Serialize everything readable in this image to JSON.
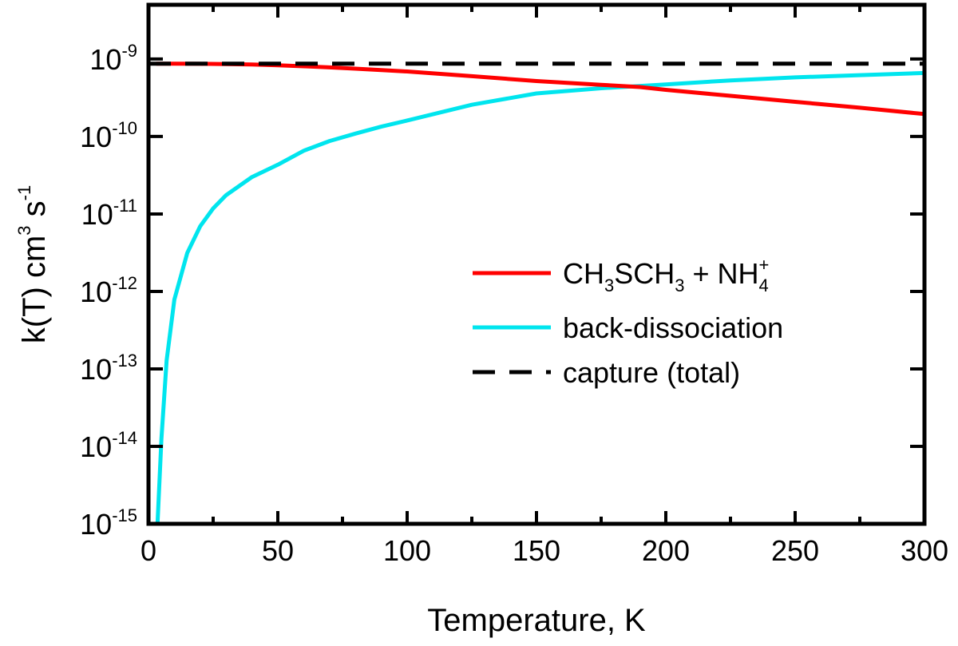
{
  "chart_data": {
    "type": "line",
    "title": "",
    "xlabel": "Temperature, K",
    "ylabel": {
      "base": "k(T) cm",
      "exp_cm": "3",
      "mid": " s",
      "exp_s": "-1"
    },
    "xlim": [
      0,
      300
    ],
    "ylim_log10": [
      -15,
      -8.3
    ],
    "x_ticks": [
      0,
      50,
      100,
      150,
      200,
      250,
      300
    ],
    "y_ticks": [
      {
        "base": "10",
        "exp": "-9",
        "log": -9
      },
      {
        "base": "10",
        "exp": "-10",
        "log": -10
      },
      {
        "base": "10",
        "exp": "-11",
        "log": -11
      },
      {
        "base": "10",
        "exp": "-12",
        "log": -12
      },
      {
        "base": "10",
        "exp": "-13",
        "log": -13
      },
      {
        "base": "10",
        "exp": "-14",
        "log": -14
      },
      {
        "base": "10",
        "exp": "-15",
        "log": -15
      }
    ],
    "grid": false,
    "legend_position": "center-right",
    "series": [
      {
        "name": "CH3SCH3 + NH4+",
        "label_parts": {
          "a": "CH",
          "s1": "3",
          "b": "SCH",
          "s2": "3",
          "c": " + NH",
          "s3": "4",
          "sup": "+"
        },
        "color": "#ff0000",
        "style": "solid",
        "x": [
          3,
          10,
          20,
          30,
          40,
          50,
          60,
          70,
          80,
          90,
          100,
          125,
          150,
          175,
          190,
          200,
          225,
          250,
          275,
          300
        ],
        "y": [
          8.7e-10,
          8.7e-10,
          8.68e-10,
          8.62e-10,
          8.5e-10,
          8.3e-10,
          8.05e-10,
          7.8e-10,
          7.5e-10,
          7.2e-10,
          6.9e-10,
          6e-10,
          5.2e-10,
          4.65e-10,
          4.35e-10,
          4e-10,
          3.35e-10,
          2.8e-10,
          2.35e-10,
          1.95e-10
        ]
      },
      {
        "name": "back-dissociation",
        "color": "#00e5ee",
        "style": "solid",
        "x": [
          3.5,
          5,
          7,
          10,
          15,
          20,
          25,
          30,
          40,
          50,
          60,
          70,
          80,
          90,
          100,
          125,
          150,
          175,
          200,
          225,
          250,
          275,
          300
        ],
        "y": [
          1e-15,
          1.25e-14,
          1.28e-13,
          7.84e-13,
          3.14e-12,
          6.94e-12,
          1.18e-11,
          1.75e-11,
          3e-11,
          4.32e-11,
          6.54e-11,
          8.73e-11,
          1.09e-10,
          1.34e-10,
          1.61e-10,
          2.57e-10,
          3.6e-10,
          4.2e-10,
          4.7e-10,
          5.3e-10,
          5.8e-10,
          6.2e-10,
          6.6e-10
        ]
      },
      {
        "name": "capture (total)",
        "color": "#000000",
        "style": "dashed",
        "x": [
          0,
          300
        ],
        "y": [
          8.7e-10,
          8.7e-10
        ]
      }
    ]
  }
}
